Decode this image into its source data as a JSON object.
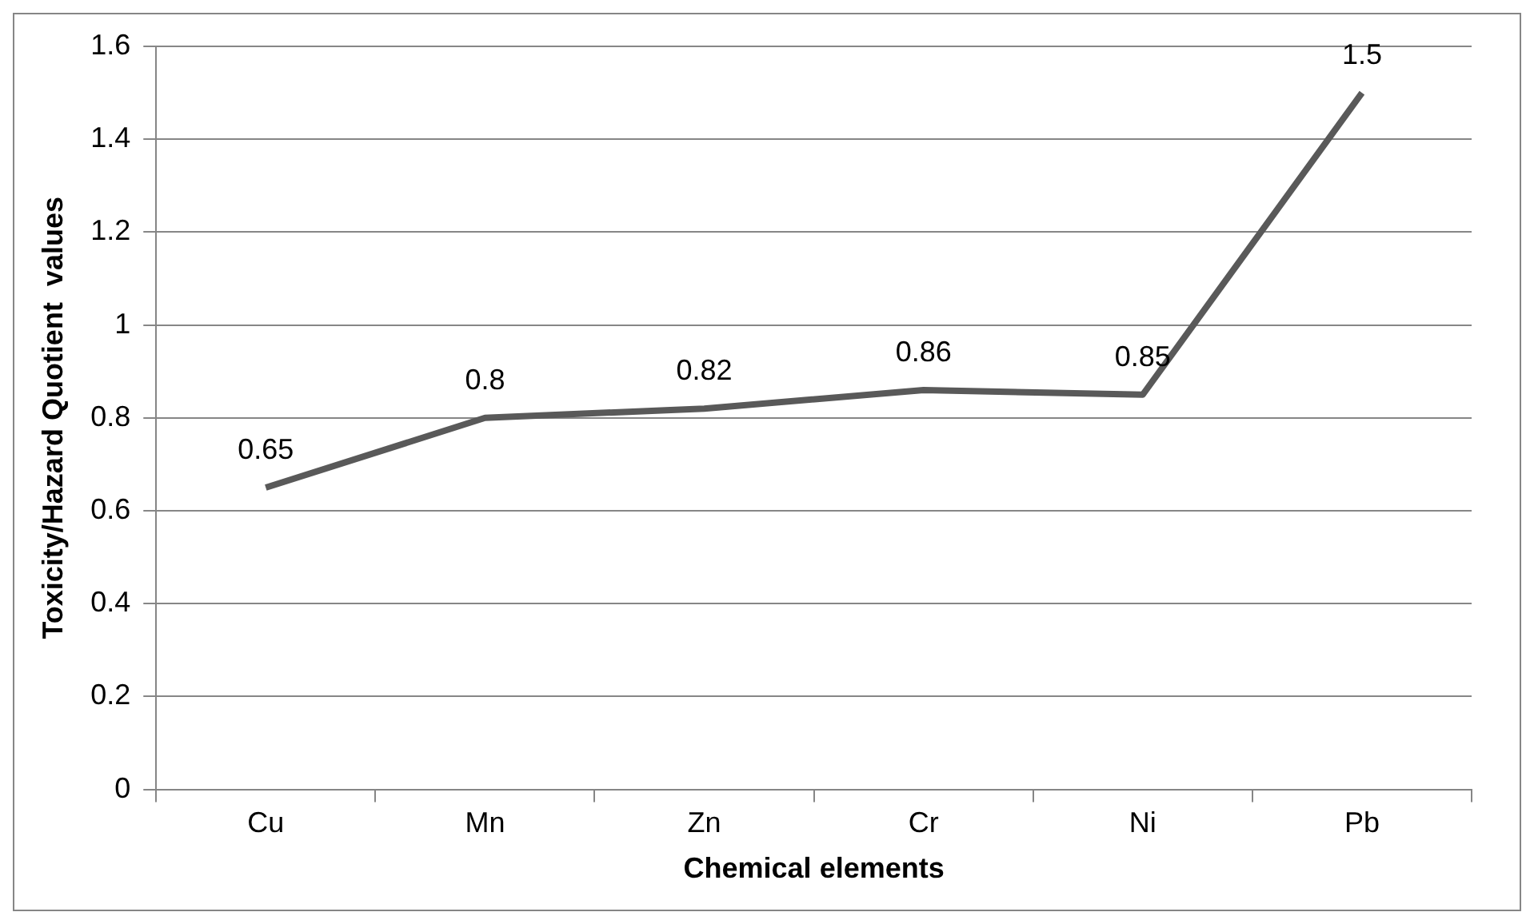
{
  "chart_data": {
    "type": "line",
    "xlabel": "Chemical elements",
    "ylabel": "Toxicity/Hazard Quotient  values",
    "categories": [
      "Cu",
      "Mn",
      "Zn",
      "Cr",
      "Ni",
      "Pb"
    ],
    "series": [
      {
        "color": "#595959",
        "values": [
          0.65,
          0.8,
          0.82,
          0.86,
          0.85,
          1.5
        ]
      }
    ],
    "ylim": [
      0,
      1.6
    ],
    "yticks": [
      0,
      0.2,
      0.4,
      0.6,
      0.8,
      1,
      1.2,
      1.4,
      1.6
    ],
    "grid": "y",
    "legend": false,
    "marker": "none",
    "line_style": "solid",
    "data_labels": true
  }
}
